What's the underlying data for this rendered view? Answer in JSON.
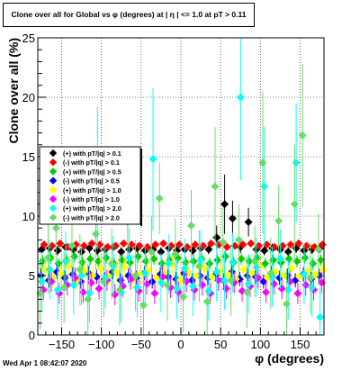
{
  "chart_data": {
    "type": "scatter",
    "title": "Clone  over all for Global vs φ (degrees) at | η | <= 1.0 at pT > 0.11",
    "xlabel": "φ (degrees)",
    "ylabel": "Clone  over all (%)",
    "xlim": [
      -180,
      180
    ],
    "ylim": [
      0,
      25
    ],
    "x_ticks": [
      -150,
      -100,
      -50,
      0,
      50,
      100,
      150
    ],
    "y_ticks": [
      0,
      5,
      10,
      15,
      20,
      25
    ],
    "grid": true,
    "legend_position": "left",
    "series": [
      {
        "name": "(+) with pT/|q| > 0.1",
        "color": "#000000",
        "marker": "diamond",
        "x": [
          -175,
          -165,
          -155,
          -145,
          -135,
          -125,
          -115,
          -105,
          -95,
          -85,
          -75,
          -65,
          -55,
          -45,
          -35,
          -25,
          -15,
          -5,
          5,
          15,
          25,
          35,
          45,
          55,
          65,
          75,
          85,
          95,
          105,
          115,
          125,
          135,
          145,
          155,
          165,
          175
        ],
        "y": [
          7.2,
          7.3,
          7.1,
          7.4,
          7.2,
          7.0,
          7.3,
          7.1,
          7.2,
          7.4,
          7.0,
          7.2,
          7.3,
          7.1,
          7.2,
          7.0,
          7.3,
          7.1,
          7.2,
          7.1,
          7.3,
          7.2,
          8.2,
          11.0,
          9.8,
          7.4,
          9.5,
          7.2,
          7.1,
          7.3,
          7.2,
          7.0,
          7.3,
          7.1,
          7.2,
          7.3
        ],
        "err": [
          0.4,
          0.4,
          0.4,
          0.4,
          0.4,
          0.4,
          0.4,
          0.4,
          0.4,
          0.4,
          0.4,
          0.4,
          0.4,
          0.4,
          0.4,
          0.4,
          0.4,
          0.4,
          0.4,
          0.4,
          0.4,
          0.4,
          1.0,
          2.5,
          1.5,
          0.5,
          1.2,
          0.4,
          0.4,
          0.4,
          0.4,
          0.4,
          0.4,
          0.4,
          0.4,
          0.4
        ]
      },
      {
        "name": "(-) with pT/|q| > 0.1",
        "color": "#ff0000",
        "marker": "diamond",
        "x": [
          -172,
          -162,
          -152,
          -142,
          -132,
          -122,
          -112,
          -102,
          -92,
          -82,
          -72,
          -62,
          -52,
          -42,
          -32,
          -22,
          -12,
          -2,
          8,
          18,
          28,
          38,
          48,
          58,
          68,
          78,
          88,
          98,
          108,
          118,
          128,
          138,
          148,
          158,
          168,
          178
        ],
        "y": [
          7.6,
          7.5,
          7.7,
          7.4,
          7.6,
          7.5,
          7.7,
          7.6,
          7.4,
          7.5,
          7.7,
          7.6,
          7.5,
          7.4,
          7.6,
          7.7,
          7.5,
          7.6,
          7.4,
          7.6,
          7.5,
          7.7,
          7.6,
          7.4,
          7.5,
          7.6,
          7.7,
          7.5,
          7.6,
          7.4,
          7.5,
          7.6,
          7.7,
          7.5,
          7.4,
          7.6
        ],
        "err": [
          0.3,
          0.3,
          0.3,
          0.3,
          0.3,
          0.3,
          0.3,
          0.3,
          0.3,
          0.3,
          0.3,
          0.3,
          0.3,
          0.3,
          0.3,
          0.3,
          0.3,
          0.3,
          0.3,
          0.3,
          0.3,
          0.3,
          0.3,
          0.3,
          0.3,
          0.3,
          0.3,
          0.3,
          0.3,
          0.3,
          0.3,
          0.3,
          0.3,
          0.3,
          0.3,
          0.3
        ]
      },
      {
        "name": "(+) with pT/|q| > 0.5",
        "color": "#00cc00",
        "marker": "diamond",
        "x": [
          -174,
          -164,
          -154,
          -144,
          -134,
          -124,
          -114,
          -104,
          -94,
          -84,
          -74,
          -64,
          -54,
          -44,
          -34,
          -24,
          -14,
          -4,
          6,
          16,
          26,
          36,
          46,
          56,
          66,
          76,
          86,
          96,
          106,
          116,
          126,
          136,
          146,
          156,
          166,
          176
        ],
        "y": [
          6.2,
          6.5,
          6.0,
          6.3,
          6.6,
          6.1,
          6.4,
          6.2,
          6.5,
          6.0,
          6.3,
          6.1,
          6.6,
          6.2,
          6.4,
          6.0,
          6.3,
          6.5,
          6.1,
          6.2,
          6.4,
          6.0,
          6.3,
          6.6,
          6.1,
          6.4,
          6.2,
          6.5,
          6.0,
          6.3,
          6.1,
          6.4,
          6.2,
          6.5,
          6.0,
          6.3
        ],
        "err": [
          0.5,
          0.5,
          0.5,
          0.5,
          0.5,
          0.5,
          0.5,
          0.5,
          0.5,
          0.5,
          0.5,
          0.5,
          0.5,
          0.5,
          0.5,
          0.5,
          0.5,
          0.5,
          0.5,
          0.5,
          0.5,
          0.5,
          0.5,
          0.5,
          0.5,
          0.5,
          0.5,
          0.5,
          0.5,
          0.5,
          0.5,
          0.5,
          0.5,
          0.5,
          0.5,
          0.5
        ]
      },
      {
        "name": "(-) with pT/|q| > 0.5",
        "color": "#0000ff",
        "marker": "diamond",
        "x": [
          -176,
          -166,
          -156,
          -146,
          -136,
          -126,
          -116,
          -106,
          -96,
          -86,
          -76,
          -66,
          -56,
          -46,
          -36,
          -26,
          -16,
          -6,
          4,
          14,
          24,
          34,
          44,
          54,
          64,
          74,
          84,
          94,
          104,
          114,
          124,
          134,
          144,
          154,
          164,
          174
        ],
        "y": [
          5.0,
          4.6,
          5.3,
          4.8,
          5.1,
          4.5,
          5.2,
          4.9,
          4.7,
          5.3,
          4.6,
          5.0,
          4.8,
          5.2,
          4.5,
          5.1,
          4.9,
          4.7,
          5.2,
          4.6,
          5.0,
          4.8,
          5.1,
          4.6,
          5.3,
          4.7,
          5.0,
          4.9,
          4.5,
          5.2,
          4.8,
          5.0,
          4.6,
          5.1,
          4.7,
          5.0
        ],
        "err": [
          0.6,
          0.6,
          0.6,
          0.6,
          0.6,
          0.6,
          0.6,
          0.6,
          0.6,
          0.6,
          0.6,
          0.6,
          0.6,
          0.6,
          0.6,
          0.6,
          0.6,
          0.6,
          0.6,
          0.6,
          0.6,
          0.6,
          0.6,
          0.6,
          0.6,
          0.6,
          0.6,
          0.6,
          0.6,
          0.6,
          0.6,
          0.6,
          0.6,
          0.6,
          0.6,
          0.6
        ]
      },
      {
        "name": "(+) with pT/|q| > 1.0",
        "color": "#ffff00",
        "marker": "diamond",
        "x": [
          -171,
          -161,
          -151,
          -141,
          -131,
          -121,
          -111,
          -101,
          -91,
          -81,
          -71,
          -61,
          -51,
          -41,
          -31,
          -21,
          -11,
          -1,
          9,
          19,
          29,
          39,
          49,
          59,
          69,
          79,
          89,
          99,
          109,
          119,
          129,
          139,
          149,
          159,
          169,
          179
        ],
        "y": [
          5.5,
          4.8,
          5.2,
          5.8,
          4.6,
          5.4,
          5.0,
          5.6,
          4.9,
          5.3,
          5.7,
          4.7,
          5.1,
          5.5,
          4.8,
          5.2,
          5.9,
          4.6,
          5.3,
          5.0,
          5.6,
          4.9,
          5.4,
          5.1,
          4.7,
          5.5,
          5.2,
          5.8,
          4.8,
          5.3,
          5.0,
          5.6,
          4.9,
          5.4,
          5.1,
          5.5
        ],
        "err": [
          0.8,
          0.8,
          0.8,
          0.8,
          0.8,
          0.8,
          0.8,
          0.8,
          0.8,
          0.8,
          0.8,
          0.8,
          0.8,
          0.8,
          0.8,
          0.8,
          0.8,
          0.8,
          0.8,
          0.8,
          0.8,
          0.8,
          0.8,
          0.8,
          0.8,
          0.8,
          0.8,
          0.8,
          0.8,
          0.8,
          0.8,
          0.8,
          0.8,
          0.8,
          0.8,
          0.8
        ]
      },
      {
        "name": "(-) with pT/|q| > 1.0",
        "color": "#ff00ff",
        "marker": "diamond",
        "x": [
          -173,
          -163,
          -153,
          -143,
          -133,
          -123,
          -113,
          -103,
          -93,
          -83,
          -73,
          -63,
          -53,
          -43,
          -33,
          -23,
          -13,
          -3,
          7,
          17,
          27,
          37,
          47,
          57,
          67,
          77,
          87,
          97,
          107,
          117,
          127,
          137,
          147,
          157,
          167,
          177
        ],
        "y": [
          3.8,
          4.5,
          3.5,
          4.2,
          4.8,
          3.6,
          4.4,
          3.9,
          4.6,
          3.4,
          4.1,
          4.7,
          3.7,
          4.3,
          3.5,
          4.9,
          4.0,
          3.6,
          4.5,
          3.8,
          4.2,
          3.5,
          4.6,
          3.9,
          4.4,
          3.7,
          4.1,
          4.8,
          3.6,
          4.3,
          3.9,
          4.5,
          3.5,
          4.2,
          3.8,
          4.4
        ],
        "err": [
          0.9,
          0.9,
          0.9,
          0.9,
          0.9,
          0.9,
          0.9,
          0.9,
          0.9,
          0.9,
          0.9,
          0.9,
          0.9,
          0.9,
          0.9,
          0.9,
          0.9,
          0.9,
          0.9,
          0.9,
          0.9,
          0.9,
          0.9,
          0.9,
          0.9,
          0.9,
          0.9,
          0.9,
          0.9,
          0.9,
          0.9,
          0.9,
          0.9,
          0.9,
          0.9,
          0.9
        ]
      },
      {
        "name": "(+) with pT/|q| > 2.0",
        "color": "#00ffff",
        "marker": "diamond",
        "x": [
          -175,
          -165,
          -155,
          -145,
          -135,
          -125,
          -115,
          -105,
          -95,
          -85,
          -75,
          -65,
          -55,
          -45,
          -35,
          -25,
          -15,
          -5,
          5,
          15,
          25,
          35,
          45,
          55,
          65,
          75,
          85,
          95,
          105,
          115,
          125,
          135,
          145,
          155,
          165,
          175
        ],
        "y": [
          4.5,
          5.5,
          3.8,
          6.2,
          4.2,
          5.0,
          3.5,
          13.2,
          4.8,
          5.8,
          3.6,
          6.5,
          4.0,
          5.2,
          14.8,
          4.4,
          6.0,
          3.9,
          5.6,
          4.1,
          6.3,
          3.7,
          5.3,
          4.6,
          6.1,
          20.0,
          4.3,
          5.7,
          12.5,
          4.9,
          6.4,
          3.8,
          14.5,
          5.1,
          4.0,
          1.5
        ],
        "err": [
          2.5,
          2.5,
          2.5,
          2.5,
          2.5,
          2.5,
          2.5,
          6.0,
          2.5,
          2.5,
          2.5,
          2.5,
          2.5,
          2.5,
          6.0,
          2.5,
          2.5,
          2.5,
          2.5,
          2.5,
          2.5,
          2.5,
          2.5,
          2.5,
          2.5,
          7.0,
          2.5,
          2.5,
          5.0,
          2.5,
          2.5,
          2.5,
          5.0,
          2.5,
          2.5,
          2.5
        ]
      },
      {
        "name": "(-) with pT/|q| > 2.0",
        "color": "#66dd66",
        "marker": "diamond",
        "x": [
          -177,
          -167,
          -157,
          -147,
          -137,
          -127,
          -117,
          -107,
          -97,
          -87,
          -77,
          -67,
          -57,
          -47,
          -37,
          -27,
          -17,
          -7,
          3,
          13,
          23,
          33,
          43,
          53,
          63,
          73,
          83,
          93,
          103,
          113,
          123,
          133,
          143,
          153,
          163,
          173
        ],
        "y": [
          3.5,
          6.5,
          9.0,
          4.0,
          7.5,
          5.5,
          3.0,
          8.5,
          4.5,
          6.0,
          3.8,
          9.5,
          5.0,
          2.5,
          7.0,
          11.5,
          4.2,
          6.8,
          3.2,
          9.2,
          5.8,
          2.8,
          12.5,
          7.8,
          4.6,
          8.0,
          3.6,
          6.2,
          14.5,
          5.2,
          9.6,
          2.6,
          11.0,
          16.8,
          4.8,
          7.2
        ],
        "err": [
          3.0,
          3.0,
          3.0,
          3.0,
          3.0,
          3.0,
          3.0,
          3.0,
          3.0,
          3.0,
          3.0,
          3.0,
          3.0,
          3.0,
          3.0,
          3.0,
          3.0,
          3.0,
          3.0,
          3.0,
          3.0,
          3.0,
          5.0,
          3.0,
          3.0,
          3.0,
          3.0,
          3.0,
          6.0,
          3.0,
          3.0,
          3.0,
          5.0,
          6.0,
          3.0,
          3.0
        ]
      }
    ]
  },
  "footer": {
    "timestamp": "Wed Apr  1 08:42:07 2020"
  }
}
